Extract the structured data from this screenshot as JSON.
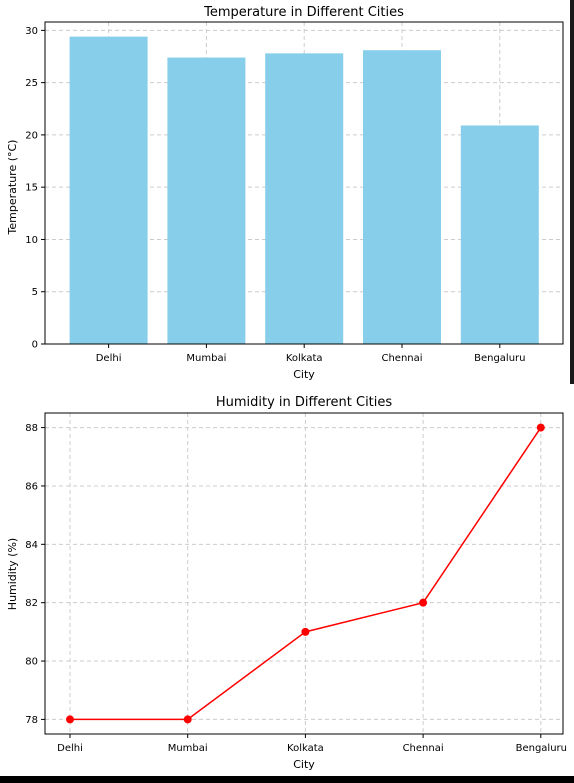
{
  "chart_data": [
    {
      "type": "bar",
      "title": "Temperature in Different Cities",
      "xlabel": "City",
      "ylabel": "Temperature (°C)",
      "categories": [
        "Delhi",
        "Mumbai",
        "Kolkata",
        "Chennai",
        "Bengaluru"
      ],
      "values": [
        29.4,
        27.4,
        27.8,
        28.1,
        20.9
      ],
      "ylim": [
        0,
        30.8
      ],
      "yticks": [
        0,
        5,
        10,
        15,
        20,
        25,
        30
      ],
      "grid": true,
      "colors": {
        "bar": "#87ceeb"
      }
    },
    {
      "type": "line",
      "title": "Humidity in Different Cities",
      "xlabel": "City",
      "ylabel": "Humidity (%)",
      "categories": [
        "Delhi",
        "Mumbai",
        "Kolkata",
        "Chennai",
        "Bengaluru"
      ],
      "values": [
        78,
        78,
        81,
        82,
        88
      ],
      "ylim": [
        77.5,
        88.5
      ],
      "yticks": [
        78,
        80,
        82,
        84,
        86,
        88
      ],
      "grid": true,
      "colors": {
        "line": "#ff0000",
        "marker": "#ff0000"
      }
    }
  ]
}
